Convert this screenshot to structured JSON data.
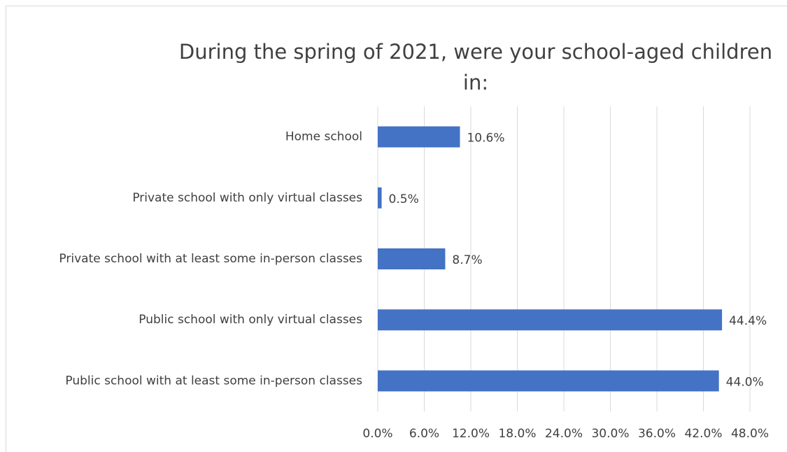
{
  "chart_data": {
    "type": "bar",
    "orientation": "horizontal",
    "title": "During the spring of 2021, were your school-aged children in:",
    "categories": [
      "Home school",
      "Private school with only virtual classes",
      "Private school with at least some in-person classes",
      "Public school with only virtual classes",
      "Public school with at least some in-person classes"
    ],
    "values": [
      10.6,
      0.5,
      8.7,
      44.4,
      44.0
    ],
    "value_labels": [
      "10.6%",
      "0.5%",
      "8.7%",
      "44.4%",
      "44.0%"
    ],
    "color": "#4472c4",
    "xlim": [
      0,
      48
    ],
    "xticks": [
      {
        "value": 0,
        "label": "0.0%"
      },
      {
        "value": 6,
        "label": "6.0%"
      },
      {
        "value": 12,
        "label": "12.0%"
      },
      {
        "value": 18,
        "label": "18.0%"
      },
      {
        "value": 24,
        "label": "24.0%"
      },
      {
        "value": 30,
        "label": "30.0%"
      },
      {
        "value": 36,
        "label": "36.0%"
      },
      {
        "value": 42,
        "label": "42.0%"
      },
      {
        "value": 48,
        "label": "48.0%"
      }
    ],
    "grid": true
  }
}
